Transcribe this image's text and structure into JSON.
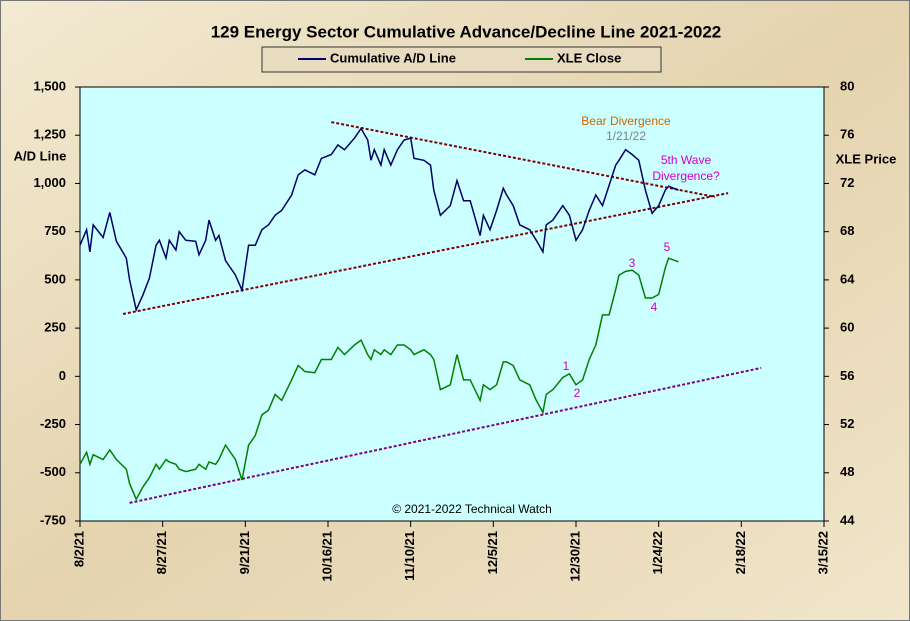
{
  "chart_data": {
    "type": "line",
    "title": "129 Energy Sector Cumulative Advance/Decline Line 2021-2022",
    "ylabel": "A/D Line",
    "y2label": "XLE Price",
    "legend": "top",
    "grid": false,
    "plot_background": "#ccffff",
    "x": [
      "2021-08-02",
      "2021-08-04",
      "2021-08-05",
      "2021-08-06",
      "2021-08-09",
      "2021-08-11",
      "2021-08-13",
      "2021-08-16",
      "2021-08-17",
      "2021-08-19",
      "2021-08-21",
      "2021-08-23",
      "2021-08-25",
      "2021-08-26",
      "2021-08-28",
      "2021-08-29",
      "2021-08-31",
      "2021-09-01",
      "2021-09-03",
      "2021-09-06",
      "2021-09-07",
      "2021-09-09",
      "2021-09-10",
      "2021-09-12",
      "2021-09-13",
      "2021-09-15",
      "2021-09-18",
      "2021-09-20",
      "2021-09-22",
      "2021-09-24",
      "2021-09-26",
      "2021-09-28",
      "2021-09-30",
      "2021-10-02",
      "2021-10-05",
      "2021-10-07",
      "2021-10-09",
      "2021-10-12",
      "2021-10-14",
      "2021-10-17",
      "2021-10-19",
      "2021-10-21",
      "2021-10-24",
      "2021-10-26",
      "2021-10-28",
      "2021-10-29",
      "2021-10-30",
      "2021-11-01",
      "2021-11-02",
      "2021-11-04",
      "2021-11-06",
      "2021-11-08",
      "2021-11-10",
      "2021-11-11",
      "2021-11-14",
      "2021-11-16",
      "2021-11-17",
      "2021-11-19",
      "2021-11-22",
      "2021-11-24",
      "2021-11-26",
      "2021-11-28",
      "2021-12-01",
      "2021-12-02",
      "2021-12-04",
      "2021-12-06",
      "2021-12-08",
      "2021-12-09",
      "2021-12-11",
      "2021-12-13",
      "2021-12-16",
      "2021-12-18",
      "2021-12-20",
      "2021-12-21",
      "2021-12-23",
      "2021-12-26",
      "2021-12-28",
      "2021-12-30",
      "2022-01-01",
      "2022-01-03",
      "2022-01-05",
      "2022-01-07",
      "2022-01-09",
      "2022-01-11",
      "2022-01-12",
      "2022-01-14",
      "2022-01-16",
      "2022-01-18",
      "2022-01-20",
      "2022-01-22",
      "2022-01-24",
      "2022-01-26",
      "2022-01-27",
      "2022-01-30"
    ],
    "series": [
      {
        "name": "Cumulative A/D Line",
        "color": "#000066",
        "axis": "y",
        "values": [
          680,
          760,
          645,
          785,
          720,
          850,
          700,
          613,
          500,
          345,
          420,
          510,
          680,
          705,
          613,
          705,
          655,
          750,
          705,
          700,
          630,
          705,
          810,
          705,
          730,
          600,
          525,
          447,
          680,
          680,
          760,
          785,
          835,
          860,
          940,
          1045,
          1070,
          1045,
          1130,
          1150,
          1200,
          1175,
          1235,
          1285,
          1225,
          1120,
          1175,
          1095,
          1175,
          1095,
          1175,
          1225,
          1235,
          1130,
          1120,
          1095,
          965,
          835,
          885,
          1015,
          910,
          910,
          730,
          835,
          760,
          860,
          975,
          940,
          885,
          785,
          760,
          705,
          645,
          785,
          810,
          885,
          835,
          705,
          760,
          860,
          940,
          885,
          990,
          1095,
          1120,
          1175,
          1150,
          1120,
          965,
          845,
          885,
          965,
          985,
          965
        ]
      },
      {
        "name": "XLE Close",
        "color": "#008000",
        "axis": "y2",
        "values": [
          48.7,
          49.7,
          48.7,
          49.5,
          49.1,
          49.9,
          49.1,
          48.3,
          47.1,
          45.8,
          46.8,
          47.6,
          48.7,
          48.3,
          49.1,
          48.9,
          48.7,
          48.3,
          48.1,
          48.3,
          48.7,
          48.3,
          48.9,
          48.7,
          49.1,
          50.3,
          49.1,
          47.4,
          50.3,
          51.1,
          52.8,
          53.2,
          54.5,
          54.0,
          55.7,
          56.9,
          56.4,
          56.3,
          57.4,
          57.4,
          58.4,
          57.8,
          58.6,
          59.0,
          57.8,
          57.4,
          58.2,
          57.8,
          58.2,
          57.8,
          58.6,
          58.6,
          58.2,
          57.8,
          58.2,
          57.8,
          57.4,
          54.9,
          55.3,
          57.8,
          55.7,
          55.7,
          54.0,
          55.3,
          54.9,
          55.3,
          57.2,
          57.2,
          56.9,
          55.7,
          55.3,
          54.0,
          53.0,
          54.5,
          54.9,
          55.9,
          56.2,
          55.3,
          55.7,
          57.4,
          58.6,
          61.1,
          61.1,
          63.2,
          64.4,
          64.7,
          64.8,
          64.4,
          62.5,
          62.5,
          62.8,
          65.0,
          65.8,
          65.5
        ]
      }
    ],
    "trendlines": [
      {
        "color": "#800000",
        "axis": "y",
        "x": [
          "2021-10-17",
          "2022-02-10"
        ],
        "values": [
          1318,
          930
        ]
      },
      {
        "color": "#800000",
        "axis": "y",
        "x": [
          "2021-08-15",
          "2022-02-14"
        ],
        "values": [
          323,
          950
        ]
      },
      {
        "color": "#800080",
        "axis": "y2",
        "x": [
          "2021-08-17",
          "2022-02-24"
        ],
        "values": [
          45.5,
          56.7
        ]
      }
    ],
    "annotations": [
      {
        "text": "Bear Divergence",
        "color": "#cc6600"
      },
      {
        "text": "1/21/22",
        "color": "#808080"
      },
      {
        "text": "5th Wave",
        "color": "#cc00cc"
      },
      {
        "text": "Divergence?",
        "color": "#cc00cc"
      },
      {
        "text": "1",
        "color": "#cc00cc"
      },
      {
        "text": "2",
        "color": "#cc00cc"
      },
      {
        "text": "3",
        "color": "#cc00cc"
      },
      {
        "text": "4",
        "color": "#cc00cc"
      },
      {
        "text": "5",
        "color": "#cc00cc"
      },
      {
        "text": "© 2021-2022  Technical Watch",
        "color": "#000000"
      }
    ],
    "xlim": [
      "2021-08-02",
      "2022-03-15"
    ],
    "xticks": [
      {
        "value": "2021-08-02",
        "label": "8/2/21"
      },
      {
        "value": "2021-08-27",
        "label": "8/27/21"
      },
      {
        "value": "2021-09-21",
        "label": "9/21/21"
      },
      {
        "value": "2021-10-16",
        "label": "10/16/21"
      },
      {
        "value": "2021-11-10",
        "label": "11/10/21"
      },
      {
        "value": "2021-12-05",
        "label": "12/5/21"
      },
      {
        "value": "2021-12-30",
        "label": "12/30/21"
      },
      {
        "value": "2022-01-24",
        "label": "1/24/22"
      },
      {
        "value": "2022-02-18",
        "label": "2/18/22"
      },
      {
        "value": "2022-03-15",
        "label": "3/15/22"
      }
    ],
    "ylim": [
      -750,
      1500
    ],
    "yticks": [
      -750,
      -500,
      -250,
      0,
      250,
      500,
      750,
      {
        "value": 1000,
        "label": "1,000"
      },
      {
        "value": 1250,
        "label": "1,250"
      },
      {
        "value": 1500,
        "label": "1,500"
      }
    ],
    "y2lim": [
      44,
      80
    ],
    "y2ticks": [
      44,
      48,
      52,
      56,
      60,
      64,
      68,
      72,
      76,
      80
    ]
  }
}
